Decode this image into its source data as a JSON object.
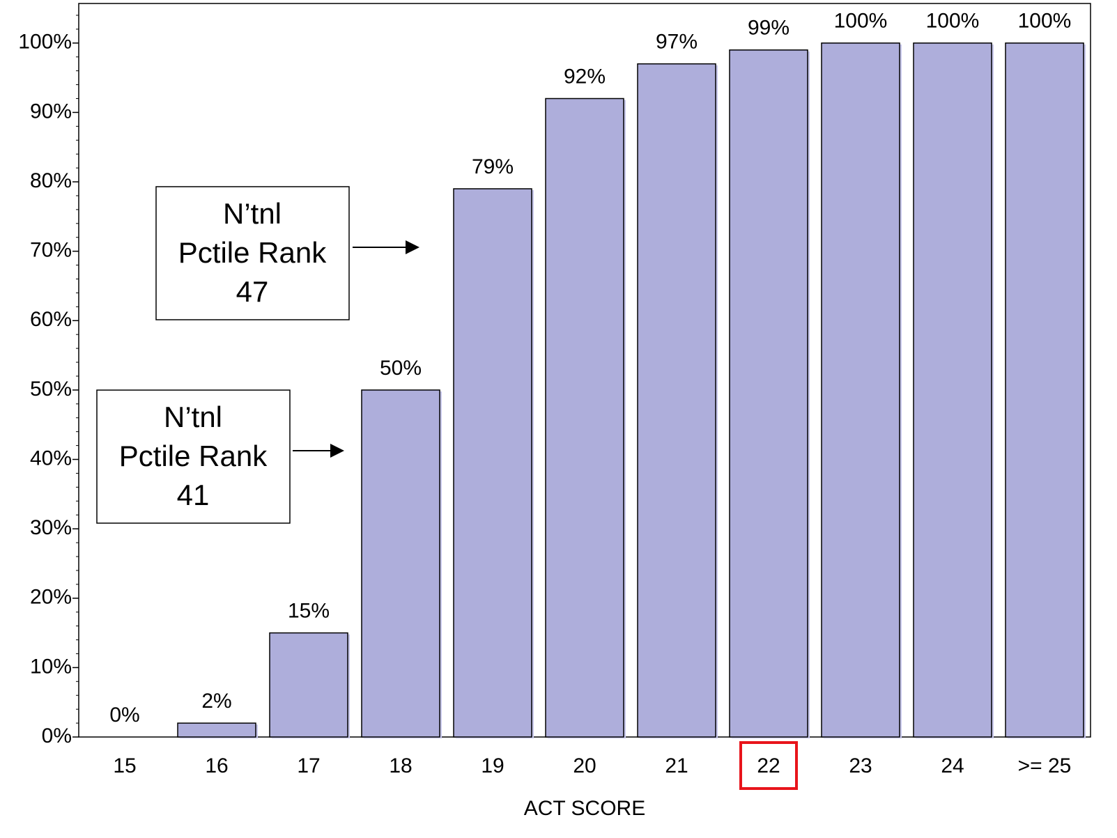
{
  "chart_data": {
    "type": "bar",
    "x_label": "ACT SCORE",
    "categories": [
      "15",
      "16",
      "17",
      "18",
      "19",
      "20",
      "21",
      "22",
      "23",
      "24",
      ">= 25"
    ],
    "values": [
      0,
      2,
      15,
      50,
      79,
      92,
      97,
      99,
      100,
      100,
      100
    ],
    "value_labels": [
      "0%",
      "2%",
      "15%",
      "50%",
      "79%",
      "92%",
      "97%",
      "99%",
      "100%",
      "100%",
      "100%"
    ],
    "color": "#aeaedb",
    "highlight": "22",
    "highlight_color": "#e8141b",
    "ylim": [
      0,
      105.7
    ],
    "yticks": [
      {
        "value": 0,
        "label": "0%"
      },
      {
        "value": 10,
        "label": "10%"
      },
      {
        "value": 20,
        "label": "20%"
      },
      {
        "value": 30,
        "label": "30%"
      },
      {
        "value": 40,
        "label": "40%"
      },
      {
        "value": 50,
        "label": "50%"
      },
      {
        "value": 60,
        "label": "60%"
      },
      {
        "value": 70,
        "label": "70%"
      },
      {
        "value": 80,
        "label": "80%"
      },
      {
        "value": 90,
        "label": "90%"
      },
      {
        "value": 100,
        "label": "100%"
      }
    ],
    "grid": false,
    "annotations": [
      {
        "lines": [
          "N’tnl",
          "Pctile Rank",
          "47"
        ]
      },
      {
        "lines": [
          "N’tnl",
          "Pctile Rank",
          "41"
        ]
      }
    ]
  }
}
